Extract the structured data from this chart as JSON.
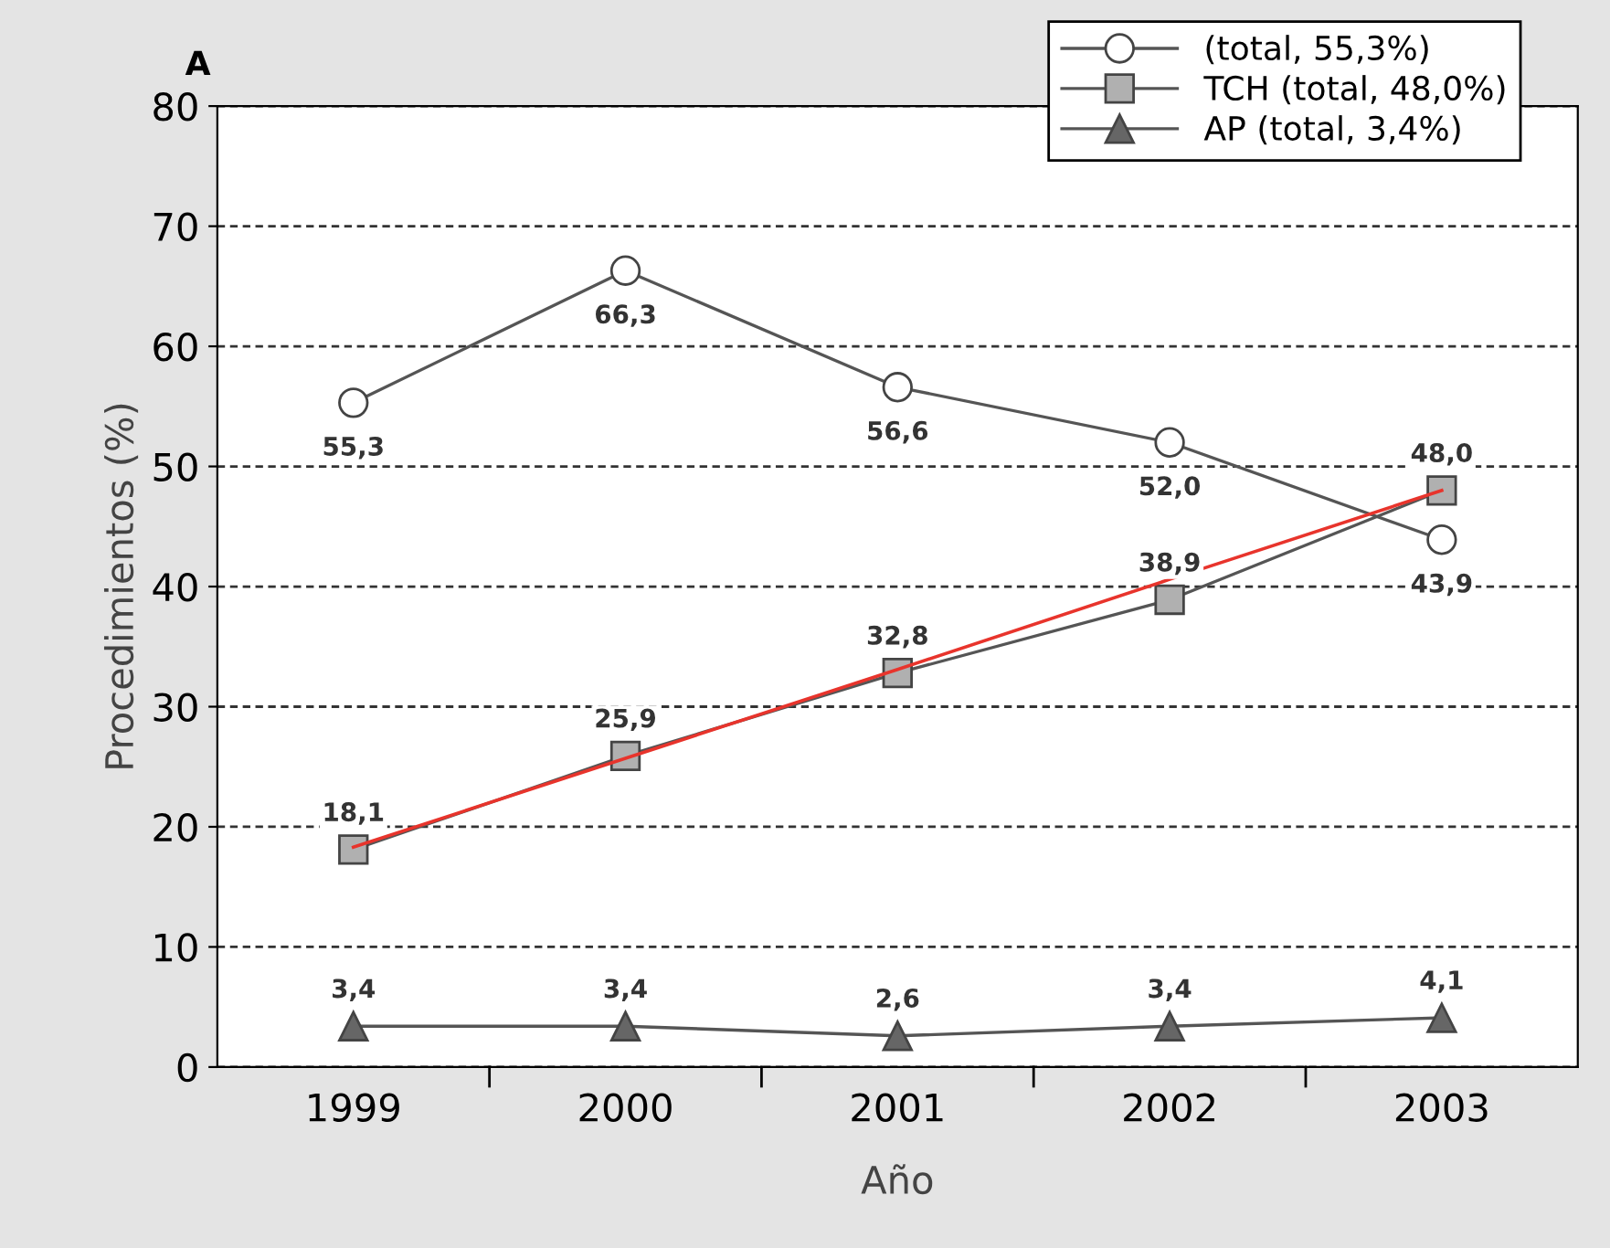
{
  "chart_data": {
    "type": "line",
    "xlabel": "Año",
    "ylabel": "Procedimientos (%)",
    "annotations": [
      "A"
    ],
    "categories": [
      "1999",
      "2000",
      "2001",
      "2002",
      "2003"
    ],
    "ylim": [
      0,
      80
    ],
    "yticks": [
      0,
      10,
      20,
      30,
      40,
      50,
      60,
      70,
      80
    ],
    "grid": "y",
    "legend": "top right",
    "line_style": "solid",
    "series": [
      {
        "name": "(total, 55,3%)",
        "color": "#555555",
        "marker": "circle",
        "values": [
          55.3,
          66.3,
          56.6,
          52.0,
          43.9
        ],
        "value_labels": [
          "55,3",
          "66,3",
          "56,6",
          "52,0",
          "43,9"
        ]
      },
      {
        "name": "TCH (total, 48,0%)",
        "color": "#555555",
        "marker": "square",
        "values": [
          18.1,
          25.9,
          32.8,
          38.9,
          48.0
        ],
        "value_labels": [
          "18,1",
          "25,9",
          "32,8",
          "38,9",
          "48,0"
        ]
      },
      {
        "name": "AP (total, 3,4%)",
        "color": "#555555",
        "marker": "triangle",
        "values": [
          3.4,
          3.4,
          2.6,
          3.4,
          4.1
        ],
        "value_labels": [
          "3,4",
          "3,4",
          "2,6",
          "3,4",
          "4,1"
        ]
      },
      {
        "color": "#e8342c",
        "values": [
          18.3,
          25.7,
          33.1,
          40.6,
          48.0
        ]
      }
    ]
  }
}
